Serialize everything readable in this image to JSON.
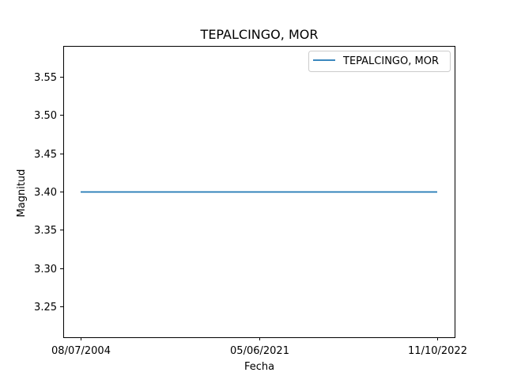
{
  "chart_data": {
    "type": "line",
    "title": "TEPALCINGO, MOR",
    "xlabel": "Fecha",
    "ylabel": "Magnitud",
    "categories": [
      "08/07/2004",
      "05/06/2021",
      "11/10/2022"
    ],
    "series": [
      {
        "name": "TEPALCINGO, MOR",
        "values": [
          3.4,
          3.4,
          3.4
        ],
        "color": "#1f77b4"
      }
    ],
    "ylim": [
      3.21,
      3.59
    ],
    "yticks": [
      3.25,
      3.3,
      3.35,
      3.4,
      3.45,
      3.5,
      3.55
    ],
    "ytick_labels": [
      "3.25",
      "3.30",
      "3.35",
      "3.40",
      "3.45",
      "3.50",
      "3.55"
    ],
    "grid": false,
    "legend_position": "top-right"
  }
}
